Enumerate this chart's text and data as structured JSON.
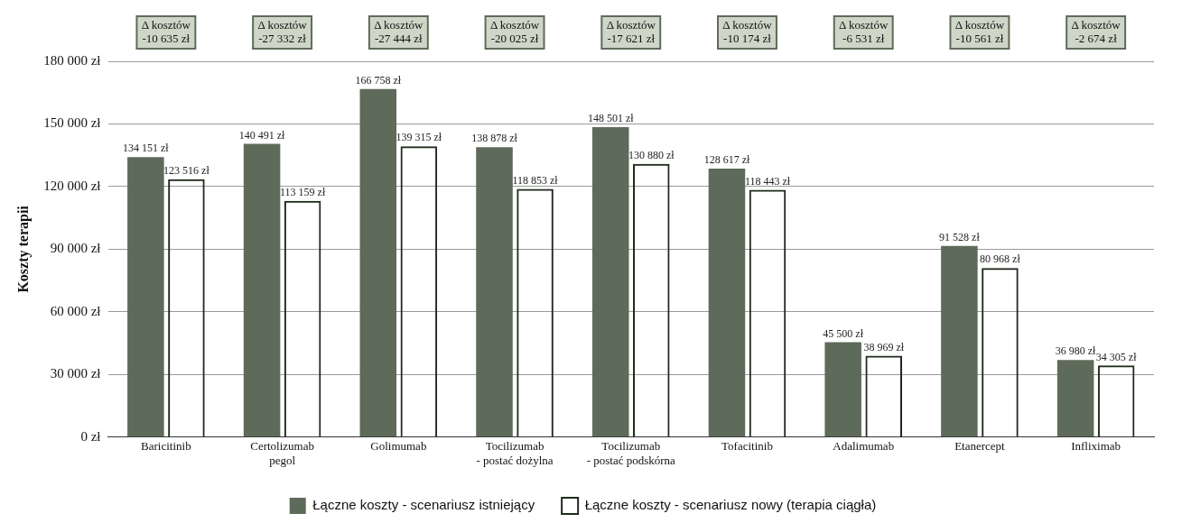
{
  "chart_data": {
    "type": "bar",
    "ylabel": "Koszty terapii",
    "categories": [
      "Baricitinib",
      "Certolizumab\npegol",
      "Golimumab",
      "Tocilizumab\n- postać dożylna",
      "Tocilizumab\n- postać podskórna",
      "Tofacitinib",
      "Adalimumab",
      "Etanercept",
      "Infliximab"
    ],
    "series": [
      {
        "name": "Łączne koszty - scenariusz istniejący",
        "color": "#5f6b5a",
        "values": [
          134151,
          140491,
          166758,
          138878,
          148501,
          128617,
          45500,
          91528,
          36980
        ],
        "value_labels": [
          "134 151 zł",
          "140 491 zł",
          "166 758 zł",
          "138 878 zł",
          "148 501 zł",
          "128 617 zł",
          "45 500 zł",
          "91 528 zł",
          "36 980 zł"
        ]
      },
      {
        "name": "Łączne koszty - scenariusz nowy (terapia ciągła)",
        "color": "#1f2a1c",
        "values": [
          123516,
          113159,
          139315,
          118853,
          130880,
          118443,
          38969,
          80968,
          34305
        ],
        "value_labels": [
          "123 516 zł",
          "113 159 zł",
          "139 315 zł",
          "118 853 zł",
          "130 880 zł",
          "118 443 zł",
          "38 969 zł",
          "80 968 zł",
          "34 305 zł"
        ]
      }
    ],
    "ylim": [
      0,
      180000
    ],
    "yticks": [
      {
        "value": 0,
        "label": "0 zł"
      },
      {
        "value": 30000,
        "label": "30 000 zł"
      },
      {
        "value": 60000,
        "label": "60 000 zł"
      },
      {
        "value": 90000,
        "label": "90 000 zł"
      },
      {
        "value": 120000,
        "label": "120 000 zł"
      },
      {
        "value": 150000,
        "label": "150 000 zł"
      },
      {
        "value": 180000,
        "label": "180 000 zł"
      }
    ],
    "grid": "y",
    "legend": "bottom",
    "annotations": [
      "Δ kosztów\n-10 635 zł",
      "Δ kosztów\n-27 332 zł",
      "Δ kosztów\n-27 444 zł",
      "Δ kosztów\n-20 025 zł",
      "Δ kosztów\n-17 621 zł",
      "Δ kosztów\n-10 174 zł",
      "Δ kosztów\n-6 531 zł",
      "Δ kosztów\n-10 561 zł",
      "Δ kosztów\n-2 674 zł"
    ]
  }
}
